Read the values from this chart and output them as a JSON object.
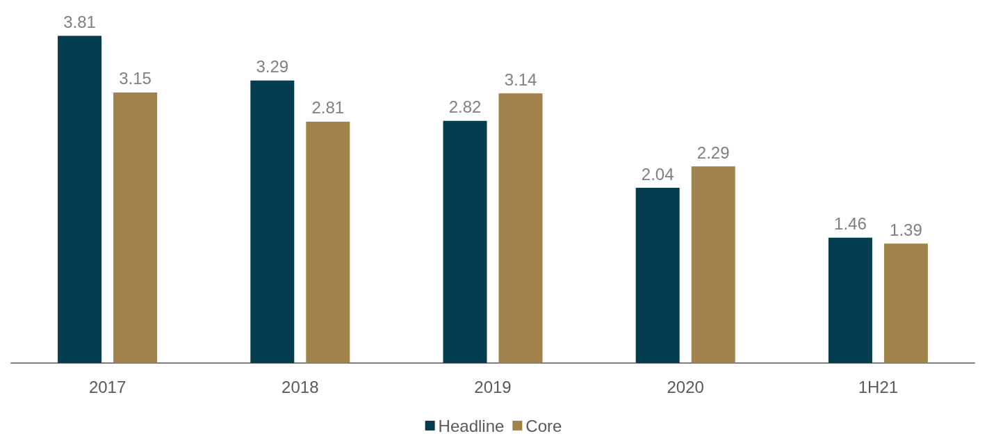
{
  "chart_data": {
    "type": "bar",
    "categories": [
      "2017",
      "2018",
      "2019",
      "2020",
      "1H21"
    ],
    "series": [
      {
        "name": "Headline",
        "color": "#053d50",
        "values": [
          3.81,
          3.29,
          2.82,
          2.04,
          1.46
        ]
      },
      {
        "name": "Core",
        "color": "#a0824a",
        "values": [
          3.15,
          2.81,
          3.14,
          2.29,
          1.39
        ]
      }
    ],
    "data_labels": true,
    "legend": "bottom",
    "grid": false
  }
}
